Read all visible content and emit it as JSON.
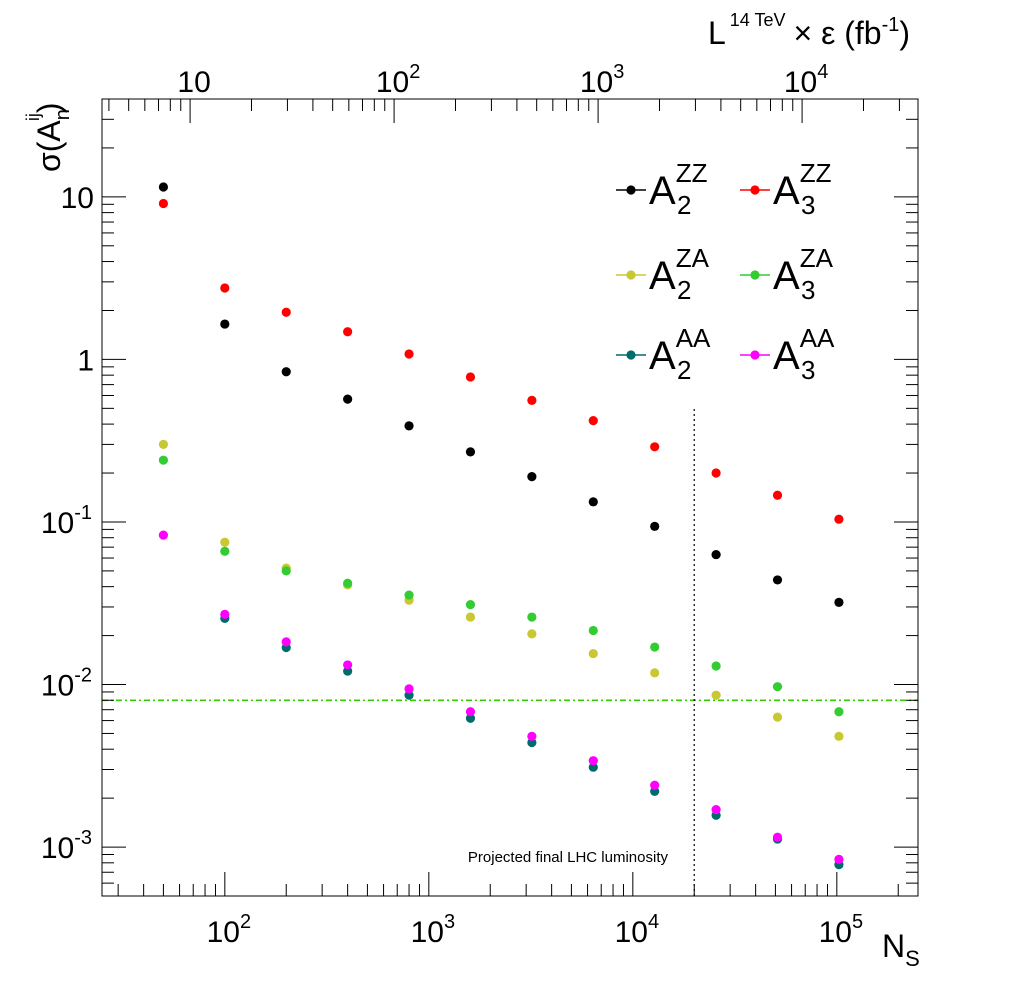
{
  "chart_data": {
    "type": "scatter",
    "x_scale": "log",
    "y_scale": "log",
    "xlim": [
      25,
      250000
    ],
    "ylim": [
      0.0005,
      40
    ],
    "x_axis": {
      "label": "N",
      "label_sub": "S",
      "tick_labels": [
        {
          "value": 100,
          "base": "10",
          "exp": "2"
        },
        {
          "value": 1000,
          "base": "10",
          "exp": "3"
        },
        {
          "value": 10000,
          "base": "10",
          "exp": "4"
        },
        {
          "value": 100000,
          "base": "10",
          "exp": "5"
        }
      ]
    },
    "top_axis": {
      "label_prefix": "L",
      "label_sup": "14 TeV",
      "label_rest": "× ε (fb",
      "label_rest_sup": "-1",
      "label_rest_end": ")",
      "scale": "log",
      "lim": [
        3.7,
        37000
      ],
      "tick_labels": [
        {
          "value": 10,
          "base": "10",
          "exp": ""
        },
        {
          "value": 100,
          "base": "10",
          "exp": "2"
        },
        {
          "value": 1000,
          "base": "10",
          "exp": "3"
        },
        {
          "value": 10000,
          "base": "10",
          "exp": "4"
        }
      ]
    },
    "y_axis": {
      "label_pre": "σ(A",
      "label_sup": "ij",
      "label_sub": "n",
      "label_post": ")",
      "tick_labels": [
        {
          "value": 0.001,
          "base": "10",
          "exp": "-3"
        },
        {
          "value": 0.01,
          "base": "10",
          "exp": "-2"
        },
        {
          "value": 0.1,
          "base": "10",
          "exp": "-1"
        },
        {
          "value": 1,
          "base": "1",
          "exp": ""
        },
        {
          "value": 10,
          "base": "10",
          "exp": ""
        }
      ]
    },
    "x": [
      50,
      100,
      200,
      400,
      800,
      1600,
      3200,
      6400,
      12800,
      25600,
      51200,
      102400
    ],
    "series": [
      {
        "name": "A",
        "sub": "2",
        "sup": "ZZ",
        "color": "#000000",
        "values": [
          11.5,
          1.65,
          0.84,
          0.57,
          0.39,
          0.27,
          0.19,
          0.133,
          0.094,
          0.063,
          0.044,
          0.032
        ]
      },
      {
        "name": "A",
        "sub": "3",
        "sup": "ZZ",
        "color": "#ff0000",
        "values": [
          9.1,
          2.75,
          1.95,
          1.48,
          1.08,
          0.78,
          0.56,
          0.42,
          0.29,
          0.2,
          0.146,
          0.104
        ]
      },
      {
        "name": "A",
        "sub": "2",
        "sup": "ZA",
        "color": "#c8c832",
        "values": [
          0.3,
          0.075,
          0.052,
          0.041,
          0.033,
          0.026,
          0.0205,
          0.0155,
          0.0118,
          0.0086,
          0.0063,
          0.0048
        ]
      },
      {
        "name": "A",
        "sub": "3",
        "sup": "ZA",
        "color": "#33cc33",
        "values": [
          0.24,
          0.066,
          0.05,
          0.042,
          0.0355,
          0.031,
          0.026,
          0.0215,
          0.017,
          0.013,
          0.0097,
          0.0068
        ]
      },
      {
        "name": "A",
        "sub": "2",
        "sup": "AA",
        "color": "#006b6b",
        "values": [
          null,
          0.0255,
          0.0169,
          0.0121,
          0.0086,
          0.0062,
          0.0044,
          0.0031,
          0.0022,
          0.00157,
          0.00112,
          0.00078
        ]
      },
      {
        "name": "A",
        "sub": "3",
        "sup": "AA",
        "color": "#ff00ff",
        "values": [
          0.083,
          0.027,
          0.0183,
          0.0132,
          0.0094,
          0.0068,
          0.0048,
          0.0034,
          0.0024,
          0.0017,
          0.00115,
          0.00084
        ]
      }
    ],
    "reference_lines": [
      {
        "orientation": "horizontal",
        "value": 0.008,
        "color": "#33cc00",
        "style": "dash-dot"
      },
      {
        "orientation": "vertical",
        "value": 20000,
        "color": "#000000",
        "style": "dotted",
        "y_to": 0.5
      }
    ],
    "annotation": "Projected final LHC luminosity",
    "legend_position": "top-right",
    "grid": false
  }
}
